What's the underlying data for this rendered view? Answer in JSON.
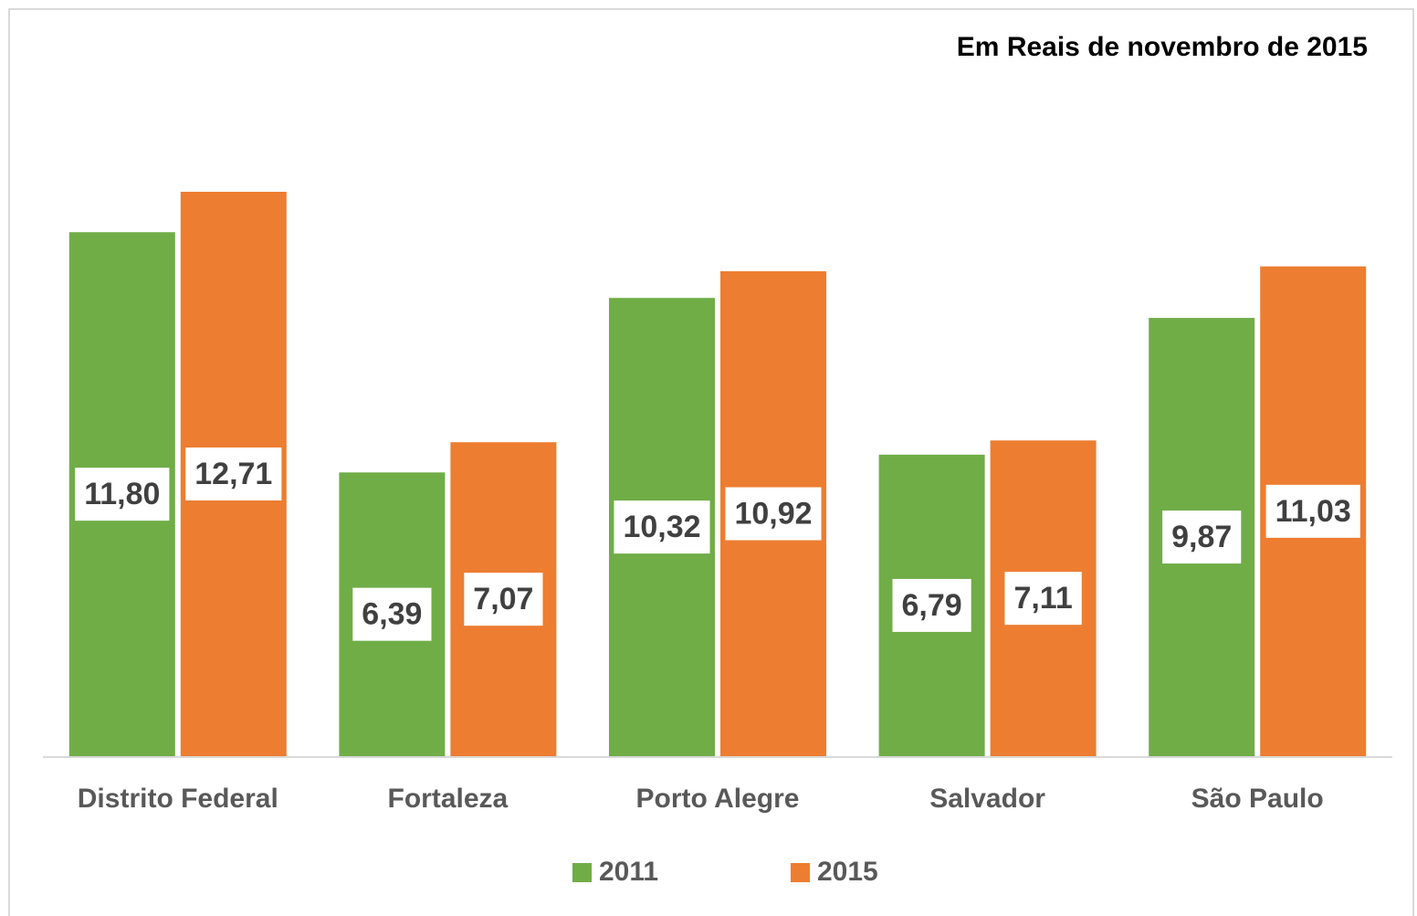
{
  "chart_data": {
    "type": "bar",
    "annotation": "Em Reais de novembro de 2015",
    "categories": [
      "Distrito Federal",
      "Fortaleza",
      "Porto Alegre",
      "Salvador",
      "São Paulo"
    ],
    "series": [
      {
        "name": "2011",
        "color": "#70ad47",
        "values": [
          11.8,
          6.39,
          10.32,
          6.79,
          9.87
        ],
        "value_labels": [
          "11,80",
          "6,39",
          "10,32",
          "6,79",
          "9,87"
        ]
      },
      {
        "name": "2015",
        "color": "#ed7d31",
        "values": [
          12.71,
          7.07,
          10.92,
          7.11,
          11.03
        ],
        "value_labels": [
          "12,71",
          "7,07",
          "10,92",
          "7,11",
          "11,03"
        ]
      }
    ],
    "legend": "bottom"
  }
}
